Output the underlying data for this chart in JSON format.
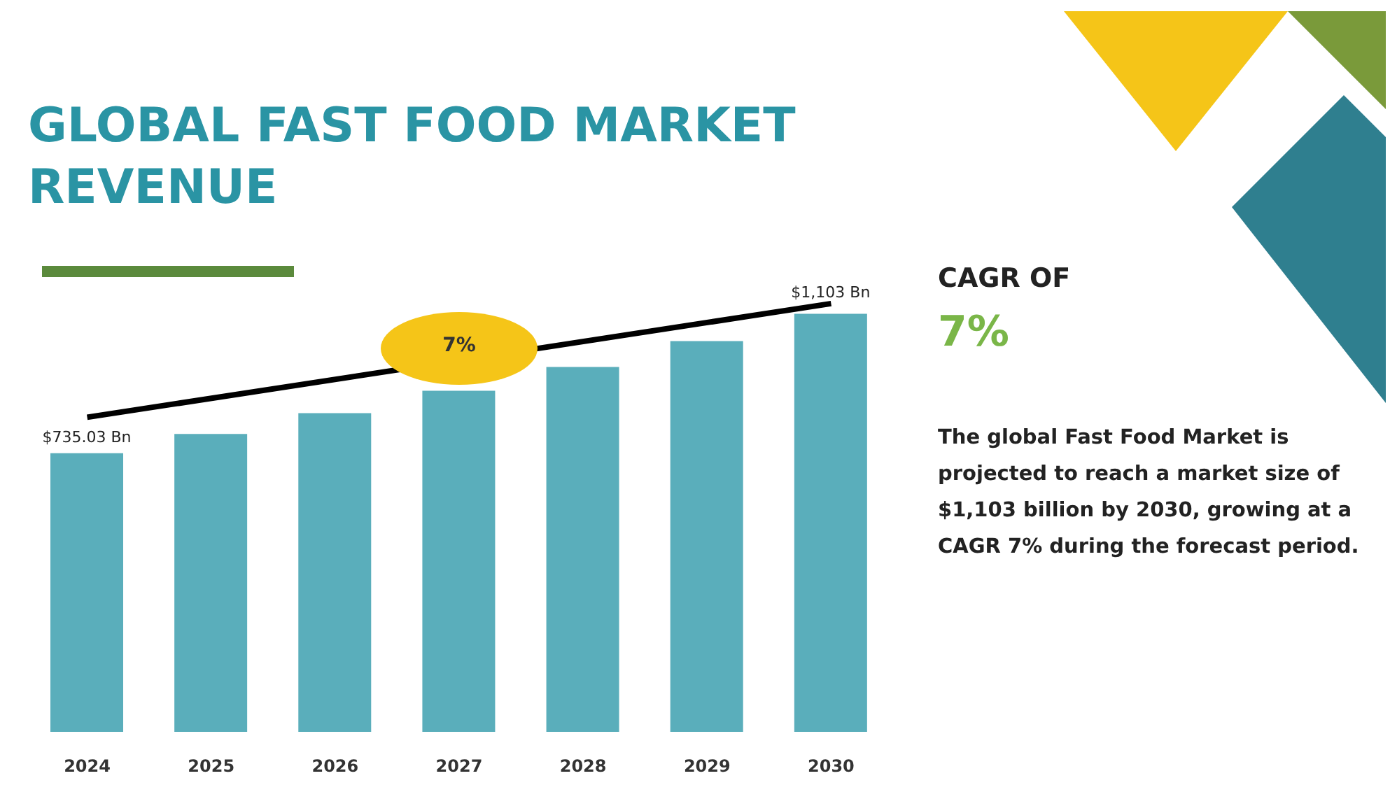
{
  "chart_data": {
    "type": "bar",
    "title": "GLOBAL FAST FOOD MARKET REVENUE",
    "categories": [
      "2024",
      "2025",
      "2026",
      "2027",
      "2028",
      "2029",
      "2030"
    ],
    "series": [
      {
        "color": "#5aaebb",
        "values": [
          735.03,
          786,
          841,
          900,
          963,
          1031,
          1103
        ],
        "value_labels": [
          "$735.03 Bn",
          null,
          null,
          null,
          null,
          null,
          "$1,103 Bn"
        ]
      },
      {
        "type": "line",
        "color": "#000000",
        "values": [
          830,
          null,
          null,
          null,
          null,
          null,
          1130
        ]
      }
    ],
    "annotations": [
      "CAGR OF",
      "7%",
      "The global Fast Food Market is projected to reach a market size of $1,103 billion by 2030, growing at a CAGR 7% during the forecast period.",
      "7%"
    ]
  }
}
